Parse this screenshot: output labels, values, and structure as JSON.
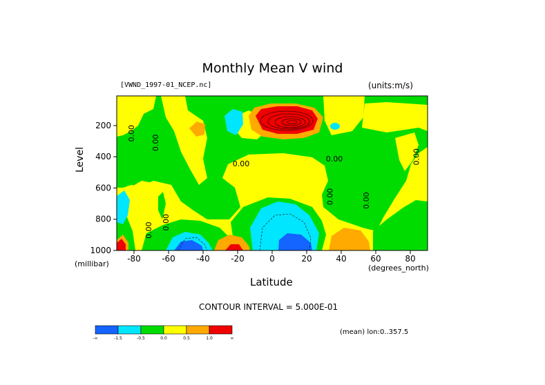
{
  "chart_data": {
    "type": "heatmap",
    "title": "Monthly Mean V wind",
    "source_label": "[VWND_1997-01_NCEP.nc]",
    "units_label": "(units:m/s)",
    "xlabel": "Latitude",
    "ylabel": "Level",
    "x_unit_label": "(degrees_north)",
    "y_unit_label": "(millibar)",
    "xlim": [
      -90,
      90
    ],
    "ylim": [
      1000,
      10
    ],
    "x_ticks": [
      -80,
      -60,
      -40,
      -20,
      0,
      20,
      40,
      60,
      80
    ],
    "y_ticks": [
      200,
      400,
      600,
      800,
      1000
    ],
    "contour_interval_text": "CONTOUR INTERVAL = 5.000E-01",
    "average_note": "(mean) lon:0..357.5",
    "contour_labels": [
      "0.00",
      "0.00",
      "0.00",
      "0.00",
      "0.00",
      "0.00",
      "0.00",
      "0.00",
      "0.00"
    ],
    "colorbar": {
      "colors": [
        "#1464ff",
        "#00e6ff",
        "#00dc00",
        "#ffff00",
        "#ffaa00",
        "#f00000"
      ],
      "labels": [
        "-∞",
        "-1.5",
        "-0.5",
        "0.0",
        "0.5",
        "1.0",
        "∞"
      ]
    },
    "regions": [
      {
        "level": "weak_pos",
        "color": "#ffff00",
        "lat_range": [
          -90,
          90
        ],
        "lev_range": [
          10,
          1000
        ]
      },
      {
        "level": "weak_neg",
        "color": "#00dc00",
        "lat_range": [
          -60,
          55
        ],
        "lev_range": [
          60,
          560
        ]
      },
      {
        "level": "strong_pos",
        "color": "#f00000",
        "center": [
          5,
          150
        ]
      },
      {
        "level": "moderate_neg",
        "color": "#00e6ff",
        "center": [
          0,
          830
        ]
      },
      {
        "level": "strong_neg",
        "color": "#1464ff",
        "center": [
          10,
          960
        ]
      },
      {
        "level": "strong_neg",
        "color": "#1464ff",
        "center": [
          -50,
          970
        ]
      },
      {
        "level": "moderate_pos",
        "color": "#ffaa00",
        "center": [
          -25,
          960
        ]
      },
      {
        "level": "moderate_pos",
        "color": "#ffaa00",
        "center": [
          48,
          920
        ]
      },
      {
        "level": "moderate_pos",
        "color": "#ffaa00",
        "center": [
          -48,
          230
        ]
      },
      {
        "level": "moderate_neg",
        "color": "#00e6ff",
        "center": [
          -24,
          200
        ]
      }
    ]
  }
}
